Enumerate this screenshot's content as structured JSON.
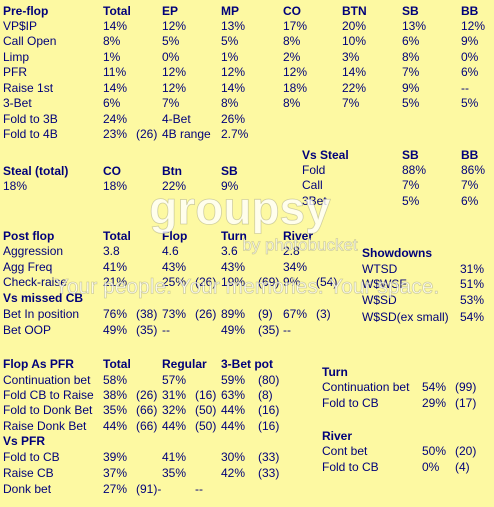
{
  "blocks": [
    {
      "rows": [
        [
          "Pre-flop",
          "Total",
          "EP",
          "MP",
          "CO",
          "BTN",
          "SB",
          "BB"
        ],
        [
          "VP$IP",
          "14%",
          "12%",
          "13%",
          "17%",
          "20%",
          "13%",
          "12%"
        ],
        [
          "Call Open",
          "8%",
          "5%",
          "5%",
          "8%",
          "10%",
          "6%",
          "9%"
        ],
        [
          "Limp",
          "1%",
          "0%",
          "1%",
          "2%",
          "3%",
          "8%",
          "0%"
        ],
        [
          "PFR",
          "11%",
          "12%",
          "12%",
          "12%",
          "14%",
          "7%",
          "6%"
        ],
        [
          "Raise 1st",
          "14%",
          "12%",
          "14%",
          "18%",
          "22%",
          "9%",
          "--"
        ],
        [
          "3-Bet",
          "6%",
          "7%",
          "8%",
          "8%",
          "7%",
          "5%",
          "5%"
        ],
        [
          "Fold to 3B",
          "24%",
          "4-Bet",
          "26%"
        ],
        [
          "Fold to 4B",
          "23%",
          "(26)",
          "4B range",
          "2.7%"
        ]
      ]
    },
    {
      "rows": [
        [
          "Steal (total)",
          "CO",
          "Btn",
          "SB"
        ],
        [
          "18%",
          "18%",
          "22%",
          "9%"
        ]
      ]
    },
    {
      "rows": [
        [
          "Vs Steal",
          "SB",
          "BB"
        ],
        [
          "Fold",
          "88%",
          "86%"
        ],
        [
          "Call",
          "7%",
          "7%"
        ],
        [
          "3Bet",
          "5%",
          "6%"
        ]
      ]
    },
    {
      "rows": [
        [
          "Post flop",
          "Total",
          "Flop",
          "Turn",
          "River"
        ],
        [
          "Aggression",
          "3.8",
          "4.6",
          "3.6",
          "2.8"
        ],
        [
          "Agg Freq",
          "41%",
          "43%",
          "43%",
          "34%"
        ],
        [
          "Check-raise",
          "21%",
          "25%",
          "(26)",
          "19%",
          "(69)",
          "9%",
          "(54)"
        ],
        [
          "Vs missed CB"
        ],
        [
          "Bet In position",
          "76%",
          "(38)",
          "73%",
          "(26)",
          "89%",
          "(9)",
          "67%",
          "(3)"
        ],
        [
          "Bet OOP",
          "49%",
          "(35)",
          "--",
          "49%",
          "(35)",
          "--"
        ]
      ]
    },
    {
      "rows": [
        [
          "Showdowns"
        ],
        [
          "WTSD",
          "31%"
        ],
        [
          "W$WSF",
          "51%"
        ],
        [
          "W$SD",
          "53%"
        ],
        [
          "W$SD(ex small)",
          "54%"
        ]
      ]
    },
    {
      "rows": [
        [
          "Flop As PFR",
          "Total",
          "Regular",
          "3-Bet pot"
        ],
        [
          "Continuation bet",
          "58%",
          "57%",
          "59%",
          "(80)"
        ],
        [
          "Fold CB to Raise",
          "38%",
          "(26)",
          "31%",
          "(16)",
          "63%",
          "(8)"
        ],
        [
          "Fold to Donk Bet",
          "35%",
          "(66)",
          "32%",
          "(50)",
          "44%",
          "(16)"
        ],
        [
          "Raise Donk Bet",
          "44%",
          "(66)",
          "44%",
          "(50)",
          "44%",
          "(16)"
        ],
        [
          "Vs PFR"
        ],
        [
          "Fold to CB",
          "39%",
          "41%",
          "30%",
          "(33)"
        ],
        [
          "Raise CB",
          "37%",
          "35%",
          "42%",
          "(33)"
        ],
        [
          "Donk bet",
          "27%",
          "(91)-",
          "--"
        ]
      ]
    },
    {
      "rows": [
        [
          "Turn"
        ],
        [
          "Continuation bet",
          "54%",
          "(99)"
        ],
        [
          "Fold to CB",
          "29%",
          "(17)"
        ],
        [
          "River"
        ],
        [
          "Cont bet",
          "50%",
          "(20)"
        ],
        [
          "Fold to CB",
          "0%",
          "(4)"
        ]
      ]
    }
  ],
  "watermark": [
    "groupsy",
    "by photobucket",
    "Your people. Your memories. Your space."
  ]
}
